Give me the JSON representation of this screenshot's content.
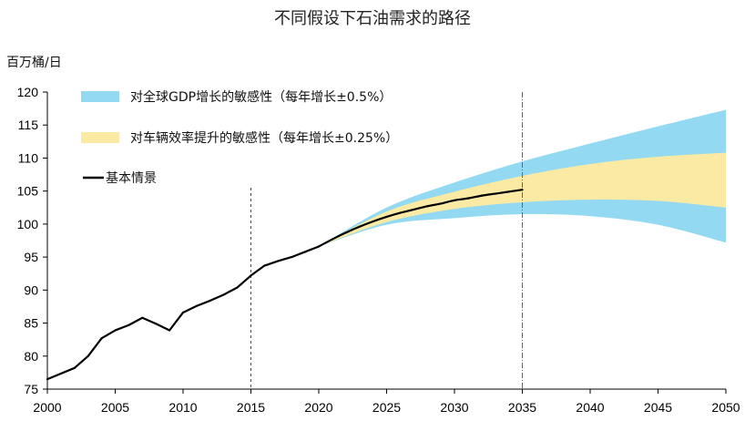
{
  "chart_data": {
    "type": "line",
    "title": "不同假设下石油需求的路径",
    "ylabel": "百万桶/日",
    "xlabel": "",
    "xlim": [
      2000,
      2050
    ],
    "ylim": [
      75,
      120
    ],
    "x_ticks": [
      2000,
      2005,
      2010,
      2015,
      2020,
      2025,
      2030,
      2035,
      2040,
      2045,
      2050
    ],
    "y_ticks": [
      75,
      80,
      85,
      90,
      95,
      100,
      105,
      110,
      115,
      120
    ],
    "grid": false,
    "legend_position": "top-left",
    "colors": {
      "gdp_band": "#93d9f2",
      "efficiency_band": "#fbeaa4",
      "base_line": "#000000",
      "vline_2015": "#2f4f7f",
      "vline_2035": "#2e8b3e"
    },
    "series": [
      {
        "name": "基本情景",
        "kind": "line",
        "x": [
          2000,
          2002,
          2003,
          2004,
          2005,
          2006,
          2007,
          2008,
          2009,
          2010,
          2011,
          2012,
          2013,
          2014,
          2015,
          2016,
          2017,
          2018,
          2019,
          2020,
          2021,
          2022,
          2023,
          2024,
          2025,
          2026,
          2027,
          2028,
          2029,
          2030,
          2031,
          2032,
          2033,
          2034,
          2035
        ],
        "y": [
          76.5,
          78.2,
          80.0,
          82.7,
          83.9,
          84.7,
          85.8,
          84.9,
          83.9,
          86.6,
          87.6,
          88.4,
          89.3,
          90.4,
          92.2,
          93.7,
          94.4,
          95.0,
          95.8,
          96.6,
          97.7,
          98.7,
          99.6,
          100.4,
          101.1,
          101.7,
          102.2,
          102.7,
          103.1,
          103.6,
          103.9,
          104.3,
          104.6,
          104.9,
          105.2
        ]
      },
      {
        "name": "对全球GDP增长的敏感性（每年增长±0.5%）",
        "kind": "band",
        "x": [
          2020,
          2025,
          2030,
          2035,
          2040,
          2045,
          2050
        ],
        "upper": [
          96.6,
          102.5,
          106.3,
          109.5,
          112.2,
          114.8,
          117.3
        ],
        "lower": [
          96.6,
          99.9,
          100.9,
          101.5,
          101.2,
          99.9,
          97.2
        ]
      },
      {
        "name": "对车辆效率提升的敏感性（每年增长±0.25%）",
        "kind": "band",
        "x": [
          2020,
          2025,
          2030,
          2035,
          2040,
          2045,
          2050
        ],
        "upper": [
          96.6,
          101.9,
          104.9,
          107.3,
          109.1,
          110.2,
          110.8
        ],
        "lower": [
          96.6,
          100.3,
          102.3,
          103.3,
          103.7,
          103.5,
          102.5
        ]
      }
    ],
    "vertical_lines": [
      2015,
      2035
    ]
  }
}
